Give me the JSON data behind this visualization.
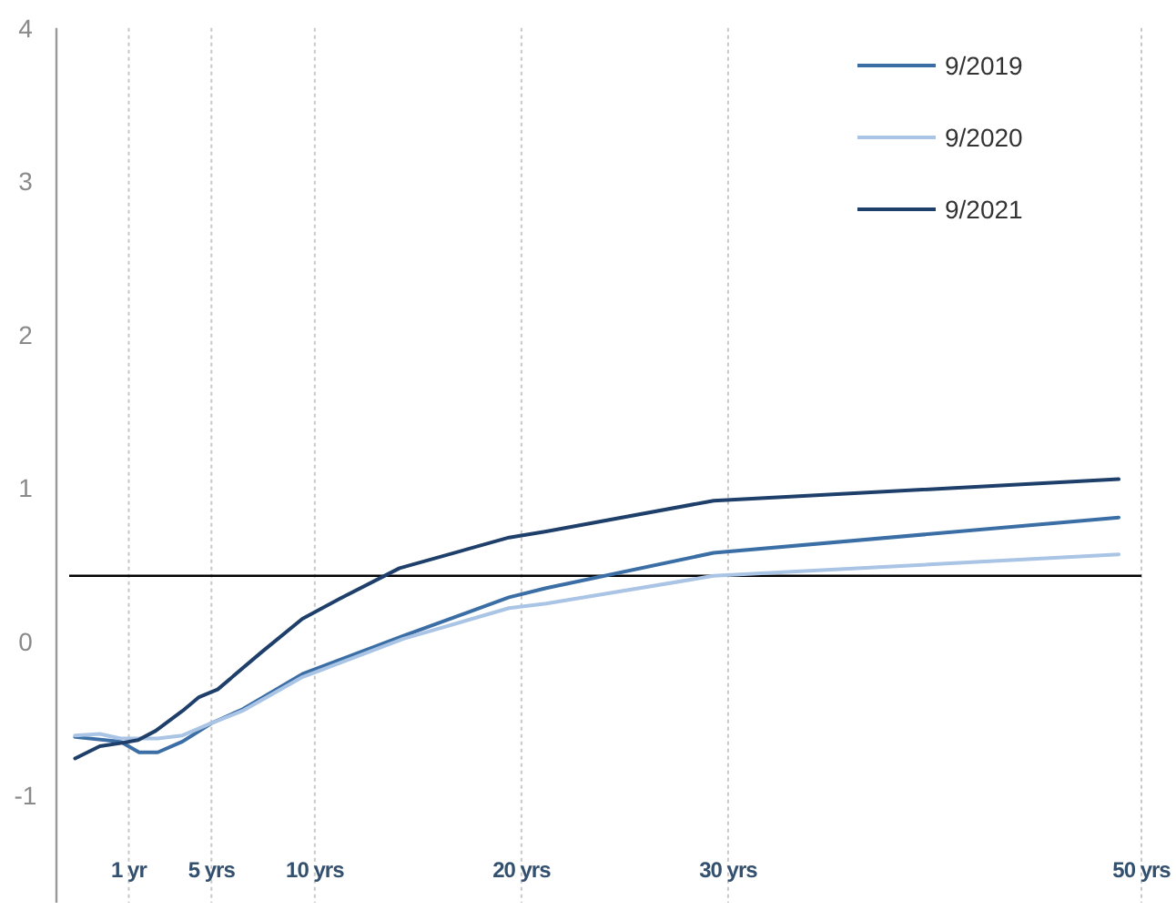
{
  "chart_data": {
    "type": "line",
    "xlim": [
      -2.5,
      50
    ],
    "xticks": [
      {
        "value": 1,
        "label": "1 yr"
      },
      {
        "value": 5,
        "label": "5 yrs"
      },
      {
        "value": 10,
        "label": "10 yrs"
      },
      {
        "value": 20,
        "label": "20 yrs"
      },
      {
        "value": 30,
        "label": "30 yrs"
      },
      {
        "value": 50,
        "label": "50 yrs"
      }
    ],
    "ylim": [
      -1.7,
      4
    ],
    "yticks": [
      -1,
      0,
      1,
      2,
      3,
      4
    ],
    "grid": "x",
    "legend": "top right",
    "marker": "none",
    "line_style": "solid",
    "ref_lines": [
      {
        "axis": "y",
        "value": 0.43,
        "color": "#000000"
      }
    ],
    "series": [
      {
        "name": "9/2019",
        "color": "#3a6ea5",
        "x": [
          -1.6,
          0.6,
          1.5,
          2.4,
          3.6,
          5.0,
          6.5,
          9.4,
          14.3,
          19.4,
          21.2,
          29.3,
          48.9
        ],
        "values": [
          -0.62,
          -0.65,
          -0.72,
          -0.72,
          -0.65,
          -0.53,
          -0.44,
          -0.21,
          0.04,
          0.29,
          0.35,
          0.58,
          0.81
        ]
      },
      {
        "name": "9/2020",
        "color": "#a9c4e4",
        "x": [
          -1.6,
          -0.4,
          0.6,
          2.4,
          3.6,
          5.0,
          6.5,
          9.4,
          14.3,
          19.4,
          21.2,
          29.3,
          48.9
        ],
        "values": [
          -0.61,
          -0.6,
          -0.63,
          -0.63,
          -0.61,
          -0.53,
          -0.45,
          -0.23,
          0.02,
          0.22,
          0.25,
          0.43,
          0.57
        ]
      },
      {
        "name": "9/2021",
        "color": "#1f3f6b",
        "x": [
          -1.6,
          -0.4,
          0.6,
          1.45,
          2.3,
          3.6,
          4.4,
          5.3,
          7.4,
          9.4,
          11.2,
          14.1,
          19.4,
          21.2,
          29.3,
          48.9
        ],
        "values": [
          -0.76,
          -0.68,
          -0.66,
          -0.64,
          -0.58,
          -0.45,
          -0.36,
          -0.31,
          -0.07,
          0.15,
          0.28,
          0.48,
          0.68,
          0.72,
          0.92,
          1.06
        ]
      }
    ]
  }
}
